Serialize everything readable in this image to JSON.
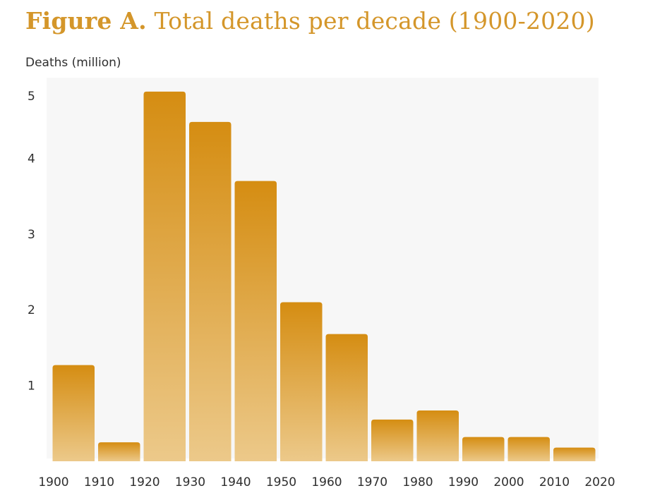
{
  "figure": {
    "title_prefix": "Figure A.",
    "title_text": "Total deaths per decade (1900-2020)"
  },
  "chart_data": {
    "type": "bar",
    "title": "Total deaths per decade (1900-2020)",
    "ylabel": "Deaths (million)",
    "xlabel": "",
    "x_ticks": [
      "1900",
      "1910",
      "1920",
      "1930",
      "1940",
      "1950",
      "1960",
      "1970",
      "1980",
      "1990",
      "2000",
      "2010",
      "2020"
    ],
    "y_ticks": [
      "1",
      "2",
      "3",
      "4",
      "5"
    ],
    "ylim": [
      0,
      5.0
    ],
    "bins": [
      {
        "start": 1900,
        "end": 1910,
        "value": 1.27
      },
      {
        "start": 1910,
        "end": 1920,
        "value": 0.25
      },
      {
        "start": 1920,
        "end": 1930,
        "value": 4.88
      },
      {
        "start": 1930,
        "end": 1940,
        "value": 4.48
      },
      {
        "start": 1940,
        "end": 1950,
        "value": 3.7
      },
      {
        "start": 1950,
        "end": 1960,
        "value": 2.1
      },
      {
        "start": 1960,
        "end": 1970,
        "value": 1.68
      },
      {
        "start": 1970,
        "end": 1980,
        "value": 0.55
      },
      {
        "start": 1980,
        "end": 1990,
        "value": 0.67
      },
      {
        "start": 1990,
        "end": 2000,
        "value": 0.32
      },
      {
        "start": 2000,
        "end": 2010,
        "value": 0.32
      },
      {
        "start": 2010,
        "end": 2020,
        "value": 0.18
      }
    ],
    "grid": "horizontal bands",
    "colors": {
      "bar_top": "#d58d12",
      "bar_bottom": "#ecc98a",
      "title": "#d4962a",
      "band": "#f7f7f7"
    }
  }
}
